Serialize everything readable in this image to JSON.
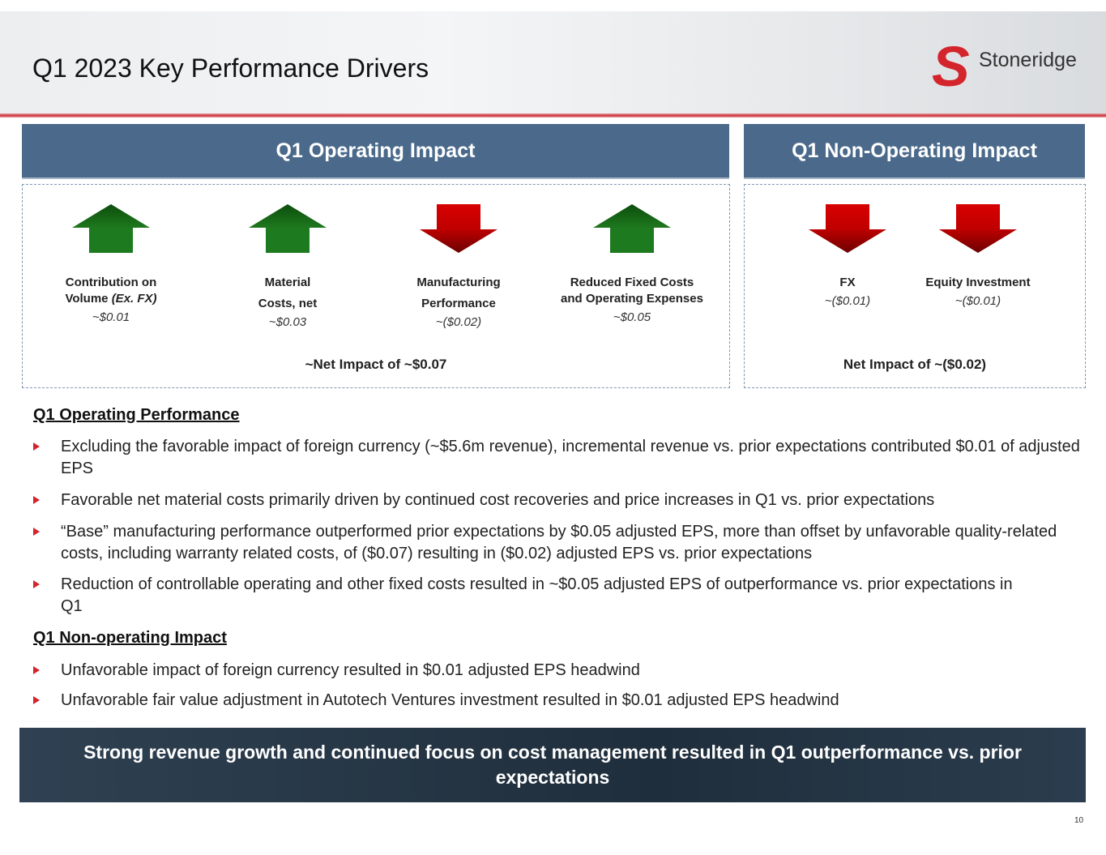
{
  "title": "Q1 2023 Key Performance Drivers",
  "logo": {
    "text": "Stoneridge"
  },
  "operating": {
    "header": "Q1 Operating Impact",
    "items": [
      {
        "label1": "Contribution on",
        "label2": "Volume ",
        "label2_italic": "(Ex. FX)",
        "value": "~$0.01",
        "direction": "up"
      },
      {
        "label1": "Material",
        "label2": "Costs, net",
        "value": "~$0.03",
        "direction": "up"
      },
      {
        "label1": "Manufacturing",
        "label2": "Performance",
        "value": "~($0.02)",
        "direction": "down"
      },
      {
        "label1": "Reduced Fixed Costs and Operating Expenses",
        "value": "~$0.05",
        "direction": "up"
      }
    ],
    "net": "~Net Impact of ~$0.07"
  },
  "non_operating": {
    "header": "Q1 Non-Operating Impact",
    "items": [
      {
        "label": "FX",
        "value": "~($0.01)",
        "direction": "down"
      },
      {
        "label": "Equity Investment",
        "value": "~($0.01)",
        "direction": "down"
      }
    ],
    "net": "Net Impact of ~($0.02)"
  },
  "sections": [
    {
      "heading": "Q1 Operating Performance",
      "bullets": [
        "Excluding the favorable impact of foreign currency (~$5.6m revenue), incremental revenue vs. prior expectations contributed $0.01 of adjusted EPS",
        "Favorable net material costs primarily driven by continued cost recoveries and price increases in Q1 vs. prior expectations",
        "“Base” manufacturing performance outperformed prior expectations by $0.05 adjusted EPS, more than offset by unfavorable quality-related costs, including warranty related costs, of ($0.07) resulting in ($0.02) adjusted EPS vs. prior expectations",
        "Reduction of controllable operating and other fixed costs resulted in ~$0.05 adjusted EPS of outperformance vs. prior expectations in Q1"
      ]
    },
    {
      "heading": "Q1 Non-operating Impact",
      "bullets": [
        "Unfavorable impact of foreign currency resulted in $0.01 adjusted EPS headwind",
        "Unfavorable fair value adjustment in Autotech Ventures investment resulted in $0.01 adjusted EPS headwind"
      ]
    }
  ],
  "banner": "Strong revenue growth and continued focus on cost management resulted in Q1 outperformance vs. prior expectations",
  "page_number": "10",
  "colors": {
    "header_blue": "#4b6a8b",
    "up_green": "#1e7a1e",
    "down_red": "#c00000",
    "accent_red": "#d4242c"
  }
}
